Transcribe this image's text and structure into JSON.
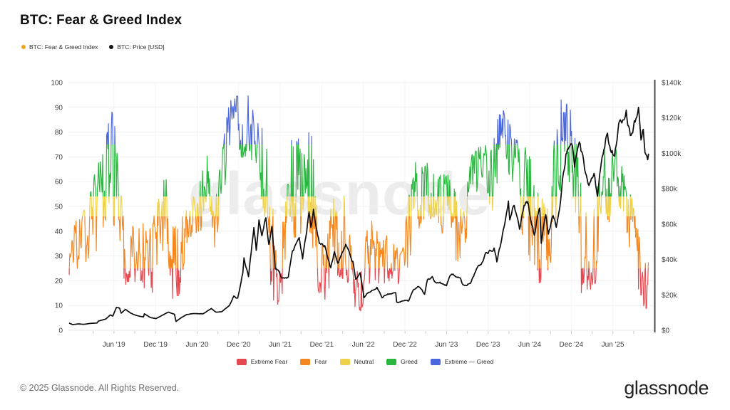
{
  "header": {
    "title": "BTC: Fear & Greed Index"
  },
  "top_legend": [
    {
      "label": "BTC: Fear & Greed Index",
      "color": "#f6a21c"
    },
    {
      "label": "BTC: Price [USD]",
      "color": "#111111"
    }
  ],
  "watermark": "glassnode",
  "footer": {
    "copyright": "© 2025 Glassnode. All Rights Reserved.",
    "brand": "glassnode"
  },
  "bottom_legend": [
    {
      "label": "Extreme Fear",
      "color": "#e5484f"
    },
    {
      "label": "Fear",
      "color": "#f5871e"
    },
    {
      "label": "Neutral",
      "color": "#eed049"
    },
    {
      "label": "Greed",
      "color": "#29b63e"
    },
    {
      "label": "Extreme — Greed",
      "color": "#4a67de"
    }
  ],
  "chart_data": {
    "type": "line",
    "title": "BTC: Fear & Greed Index",
    "grid": "horizontal-light",
    "legend_position": "bottom-center",
    "price_color": "#0d0d0d",
    "axis_text_color": "#3f3f3f",
    "right_spine_color": "#4a4a4a",
    "left_axis": {
      "range": [
        0,
        100
      ],
      "ticks": [
        0,
        10,
        20,
        30,
        40,
        50,
        60,
        70,
        80,
        90,
        100
      ]
    },
    "right_axis": {
      "range_usd": [
        0,
        140000
      ],
      "ticks": [
        {
          "v": 0,
          "label": "$0"
        },
        {
          "v": 20,
          "label": "$20k"
        },
        {
          "v": 40,
          "label": "$40k"
        },
        {
          "v": 60,
          "label": "$60k"
        },
        {
          "v": 80,
          "label": "$80k"
        },
        {
          "v": 100,
          "label": "$100k"
        },
        {
          "v": 120,
          "label": "$120k"
        },
        {
          "v": 140,
          "label": "$140k"
        }
      ]
    },
    "x_axis": {
      "start_month": "2018-12",
      "end_date": "2025-11-20",
      "ticks": [
        {
          "m": "2019-06",
          "label": "Jun '19"
        },
        {
          "m": "2019-12",
          "label": "Dec '19"
        },
        {
          "m": "2020-06",
          "label": "Jun '20"
        },
        {
          "m": "2020-12",
          "label": "Dec '20"
        },
        {
          "m": "2021-06",
          "label": "Jun '21"
        },
        {
          "m": "2021-12",
          "label": "Dec '21"
        },
        {
          "m": "2022-06",
          "label": "Jun '22"
        },
        {
          "m": "2022-12",
          "label": "Dec '22"
        },
        {
          "m": "2023-06",
          "label": "Jun '23"
        },
        {
          "m": "2023-12",
          "label": "Dec '23"
        },
        {
          "m": "2024-06",
          "label": "Jun '24"
        },
        {
          "m": "2024-12",
          "label": "Dec '24"
        },
        {
          "m": "2025-06",
          "label": "Jun '25"
        }
      ]
    },
    "bands": {
      "thresholds": [
        25,
        46,
        54,
        75
      ],
      "classes": [
        {
          "name": "Extreme Fear",
          "range": [
            0,
            25
          ],
          "color": "#e5484f"
        },
        {
          "name": "Fear",
          "range": [
            25,
            46
          ],
          "color": "#f5871e"
        },
        {
          "name": "Neutral",
          "range": [
            46,
            54
          ],
          "color": "#eed049"
        },
        {
          "name": "Greed",
          "range": [
            54,
            75
          ],
          "color": "#29b63e"
        },
        {
          "name": "Extreme — Greed",
          "range": [
            75,
            100
          ],
          "color": "#4a67de"
        }
      ]
    },
    "fear_greed_monthly_lo_hi": [
      [
        20,
        42
      ],
      [
        22,
        45
      ],
      [
        25,
        48
      ],
      [
        28,
        55
      ],
      [
        32,
        68
      ],
      [
        42,
        72
      ],
      [
        50,
        95
      ],
      [
        30,
        80
      ],
      [
        18,
        45
      ],
      [
        15,
        42
      ],
      [
        20,
        50
      ],
      [
        15,
        42
      ],
      [
        15,
        45
      ],
      [
        25,
        58
      ],
      [
        35,
        62
      ],
      [
        8,
        42
      ],
      [
        15,
        45
      ],
      [
        35,
        55
      ],
      [
        38,
        55
      ],
      [
        40,
        62
      ],
      [
        55,
        82
      ],
      [
        33,
        52
      ],
      [
        48,
        72
      ],
      [
        65,
        92
      ],
      [
        75,
        95
      ],
      [
        68,
        95
      ],
      [
        70,
        95
      ],
      [
        65,
        92
      ],
      [
        48,
        80
      ],
      [
        10,
        72
      ],
      [
        10,
        32
      ],
      [
        10,
        48
      ],
      [
        48,
        78
      ],
      [
        20,
        78
      ],
      [
        55,
        85
      ],
      [
        25,
        84
      ],
      [
        15,
        38
      ],
      [
        10,
        32
      ],
      [
        20,
        55
      ],
      [
        21,
        60
      ],
      [
        20,
        55
      ],
      [
        8,
        28
      ],
      [
        6,
        22
      ],
      [
        15,
        42
      ],
      [
        20,
        47
      ],
      [
        18,
        35
      ],
      [
        20,
        40
      ],
      [
        12,
        35
      ],
      [
        24,
        32
      ],
      [
        25,
        55
      ],
      [
        44,
        68
      ],
      [
        33,
        68
      ],
      [
        45,
        68
      ],
      [
        44,
        60
      ],
      [
        38,
        65
      ],
      [
        44,
        62
      ],
      [
        25,
        54
      ],
      [
        33,
        48
      ],
      [
        44,
        72
      ],
      [
        58,
        74
      ],
      [
        58,
        75
      ],
      [
        46,
        76
      ],
      [
        55,
        90
      ],
      [
        68,
        90
      ],
      [
        55,
        80
      ],
      [
        46,
        76
      ],
      [
        28,
        74
      ],
      [
        25,
        68
      ],
      [
        17,
        55
      ],
      [
        22,
        50
      ],
      [
        30,
        78
      ],
      [
        58,
        94
      ],
      [
        62,
        94
      ],
      [
        48,
        84
      ],
      [
        10,
        55
      ],
      [
        15,
        48
      ],
      [
        15,
        72
      ],
      [
        52,
        78
      ],
      [
        42,
        74
      ],
      [
        58,
        74
      ],
      [
        38,
        66
      ],
      [
        26,
        56
      ],
      [
        18,
        44
      ],
      [
        8,
        28
      ]
    ],
    "price_usd_thousands": [
      [
        "2018-12-01",
        4.1
      ],
      [
        "2018-12-16",
        3.2
      ],
      [
        "2019-01-10",
        3.6
      ],
      [
        "2019-02-07",
        3.4
      ],
      [
        "2019-03-01",
        3.9
      ],
      [
        "2019-04-01",
        4.1
      ],
      [
        "2019-04-08",
        5.2
      ],
      [
        "2019-05-10",
        6.4
      ],
      [
        "2019-05-30",
        8.7
      ],
      [
        "2019-06-10",
        8.0
      ],
      [
        "2019-06-26",
        12.9
      ],
      [
        "2019-07-09",
        12.6
      ],
      [
        "2019-07-17",
        9.7
      ],
      [
        "2019-08-05",
        11.8
      ],
      [
        "2019-08-28",
        9.7
      ],
      [
        "2019-09-23",
        8.4
      ],
      [
        "2019-10-23",
        7.5
      ],
      [
        "2019-10-27",
        9.3
      ],
      [
        "2019-11-22",
        7.3
      ],
      [
        "2019-12-17",
        6.6
      ],
      [
        "2020-01-07",
        8.0
      ],
      [
        "2020-02-12",
        10.3
      ],
      [
        "2020-03-07",
        9.0
      ],
      [
        "2020-03-14",
        5.0
      ],
      [
        "2020-04-06",
        7.1
      ],
      [
        "2020-04-29",
        8.8
      ],
      [
        "2020-05-30",
        9.5
      ],
      [
        "2020-07-10",
        9.2
      ],
      [
        "2020-08-17",
        12.3
      ],
      [
        "2020-09-07",
        10.2
      ],
      [
        "2020-10-02",
        10.5
      ],
      [
        "2020-11-05",
        14.1
      ],
      [
        "2020-11-24",
        19.2
      ],
      [
        "2020-12-11",
        18.1
      ],
      [
        "2021-01-03",
        33.0
      ],
      [
        "2021-01-08",
        40.8
      ],
      [
        "2021-01-28",
        30.4
      ],
      [
        "2021-02-21",
        57.4
      ],
      [
        "2021-03-01",
        45.2
      ],
      [
        "2021-03-13",
        61.7
      ],
      [
        "2021-03-26",
        52.5
      ],
      [
        "2021-04-13",
        63.5
      ],
      [
        "2021-04-26",
        49.2
      ],
      [
        "2021-05-09",
        58.3
      ],
      [
        "2021-05-24",
        34.8
      ],
      [
        "2021-06-09",
        33.4
      ],
      [
        "2021-06-22",
        29.8
      ],
      [
        "2021-07-20",
        29.8
      ],
      [
        "2021-08-08",
        44.6
      ],
      [
        "2021-08-24",
        47.7
      ],
      [
        "2021-09-07",
        52.7
      ],
      [
        "2021-09-22",
        40.7
      ],
      [
        "2021-10-20",
        66.0
      ],
      [
        "2021-10-28",
        58.5
      ],
      [
        "2021-11-09",
        67.5
      ],
      [
        "2021-12-04",
        49.3
      ],
      [
        "2021-12-28",
        47.5
      ],
      [
        "2022-01-24",
        35.1
      ],
      [
        "2022-02-10",
        44.6
      ],
      [
        "2022-02-24",
        37.7
      ],
      [
        "2022-03-29",
        47.5
      ],
      [
        "2022-04-30",
        38.6
      ],
      [
        "2022-05-12",
        28.2
      ],
      [
        "2022-05-31",
        31.8
      ],
      [
        "2022-06-13",
        22.5
      ],
      [
        "2022-06-18",
        18.5
      ],
      [
        "2022-07-07",
        21.6
      ],
      [
        "2022-08-14",
        24.4
      ],
      [
        "2022-09-06",
        18.8
      ],
      [
        "2022-10-04",
        20.3
      ],
      [
        "2022-11-05",
        21.3
      ],
      [
        "2022-11-09",
        16.0
      ],
      [
        "2022-11-21",
        15.8
      ],
      [
        "2022-12-15",
        17.4
      ],
      [
        "2023-01-01",
        16.6
      ],
      [
        "2023-01-21",
        22.7
      ],
      [
        "2023-02-16",
        24.6
      ],
      [
        "2023-03-10",
        20.2
      ],
      [
        "2023-03-22",
        28.2
      ],
      [
        "2023-04-13",
        30.4
      ],
      [
        "2023-04-26",
        27.6
      ],
      [
        "2023-05-20",
        26.9
      ],
      [
        "2023-06-15",
        25.1
      ],
      [
        "2023-06-30",
        30.5
      ],
      [
        "2023-07-13",
        31.5
      ],
      [
        "2023-08-16",
        28.7
      ],
      [
        "2023-08-22",
        26.0
      ],
      [
        "2023-09-11",
        25.2
      ],
      [
        "2023-10-01",
        27.0
      ],
      [
        "2023-10-24",
        34.2
      ],
      [
        "2023-11-15",
        37.8
      ],
      [
        "2023-12-08",
        44.2
      ],
      [
        "2024-01-02",
        45.0
      ],
      [
        "2024-01-11",
        46.6
      ],
      [
        "2024-01-23",
        39.0
      ],
      [
        "2024-02-14",
        52.0
      ],
      [
        "2024-02-28",
        62.4
      ],
      [
        "2024-03-13",
        73.1
      ],
      [
        "2024-03-19",
        62.8
      ],
      [
        "2024-04-08",
        71.5
      ],
      [
        "2024-05-01",
        57.5
      ],
      [
        "2024-05-21",
        71.4
      ],
      [
        "2024-06-07",
        71.1
      ],
      [
        "2024-06-24",
        59.6
      ],
      [
        "2024-07-05",
        54.0
      ],
      [
        "2024-07-29",
        69.9
      ],
      [
        "2024-08-05",
        50.0
      ],
      [
        "2024-08-25",
        64.3
      ],
      [
        "2024-09-06",
        53.9
      ],
      [
        "2024-09-27",
        65.7
      ],
      [
        "2024-10-10",
        59.5
      ],
      [
        "2024-10-29",
        72.7
      ],
      [
        "2024-11-11",
        88.7
      ],
      [
        "2024-11-22",
        99.0
      ],
      [
        "2024-12-05",
        103.0
      ],
      [
        "2024-12-17",
        106.5
      ],
      [
        "2024-12-30",
        92.7
      ],
      [
        "2025-01-20",
        107.2
      ],
      [
        "2025-02-01",
        100.6
      ],
      [
        "2025-02-28",
        80.5
      ],
      [
        "2025-03-24",
        88.0
      ],
      [
        "2025-04-08",
        76.3
      ],
      [
        "2025-04-25",
        94.7
      ],
      [
        "2025-05-10",
        104.1
      ],
      [
        "2025-05-22",
        111.7
      ],
      [
        "2025-06-05",
        101.6
      ],
      [
        "2025-06-22",
        99.0
      ],
      [
        "2025-07-14",
        120.0
      ],
      [
        "2025-07-28",
        118.0
      ],
      [
        "2025-08-13",
        123.3
      ],
      [
        "2025-08-31",
        108.2
      ],
      [
        "2025-09-18",
        117.4
      ],
      [
        "2025-10-06",
        125.9
      ],
      [
        "2025-10-17",
        106.0
      ],
      [
        "2025-10-27",
        114.5
      ],
      [
        "2025-11-04",
        101.5
      ],
      [
        "2025-11-16",
        95.0
      ],
      [
        "2025-11-20",
        99.8
      ]
    ]
  }
}
